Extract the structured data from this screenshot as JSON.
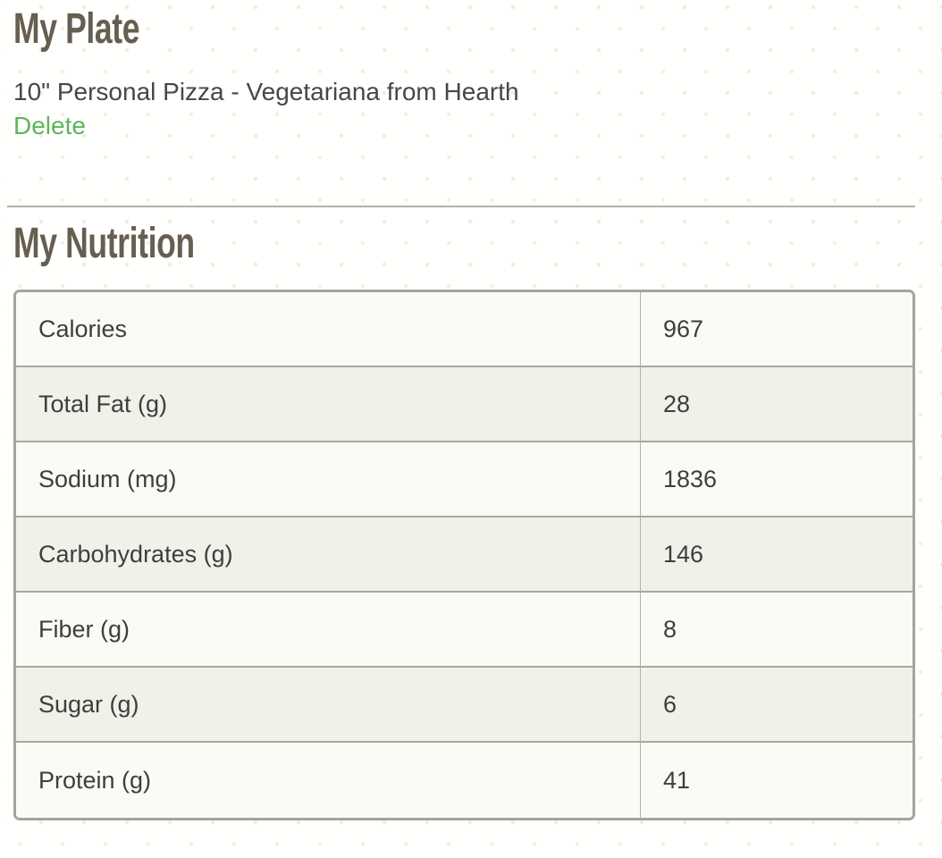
{
  "plate": {
    "title": "My Plate",
    "item_name": "10\" Personal Pizza - Vegetariana from Hearth",
    "delete_label": "Delete"
  },
  "nutrition": {
    "title": "My Nutrition",
    "rows": [
      {
        "label": "Calories",
        "value": "967"
      },
      {
        "label": "Total Fat (g)",
        "value": "28"
      },
      {
        "label": "Sodium (mg)",
        "value": "1836"
      },
      {
        "label": "Carbohydrates (g)",
        "value": "146"
      },
      {
        "label": "Fiber (g)",
        "value": "8"
      },
      {
        "label": "Sugar (g)",
        "value": "6"
      },
      {
        "label": "Protein (g)",
        "value": "41"
      }
    ]
  },
  "colors": {
    "heading": "#665e50",
    "link_green": "#5cb65a",
    "table_border": "#9ea69d",
    "row_light": "#fcfaf4",
    "row_dark": "#f1f0e9",
    "cell_text": "#3e3e3e"
  }
}
